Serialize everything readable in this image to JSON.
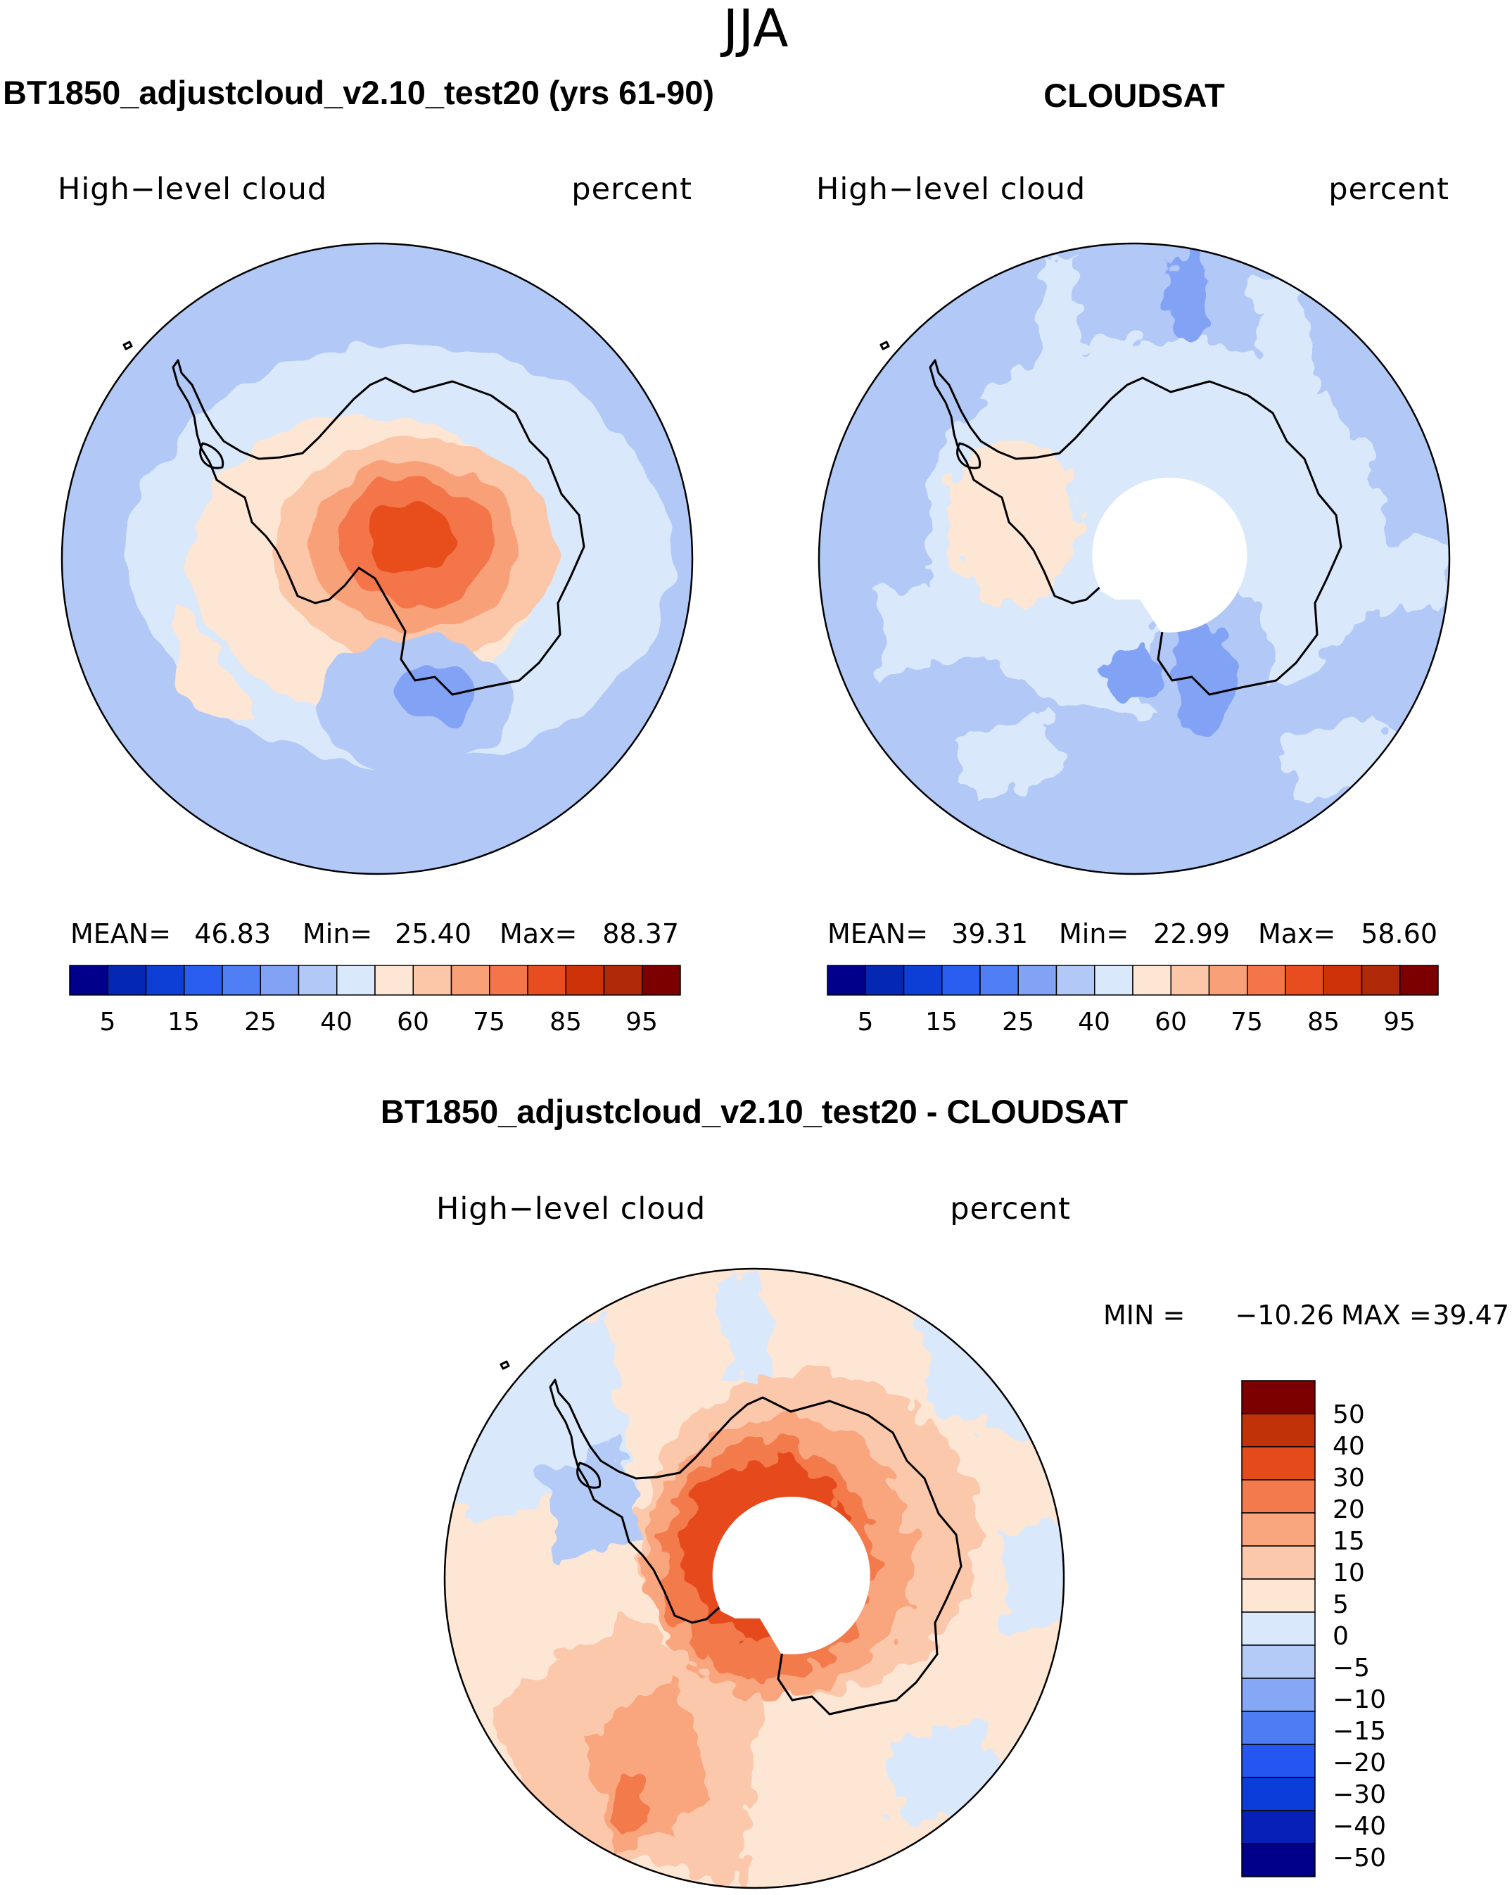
{
  "figure": {
    "season": "JJA",
    "colors": {
      "seq": [
        "#00008b",
        "#0528b4",
        "#0d3fd7",
        "#2a5ef0",
        "#4f7ef5",
        "#82a3f5",
        "#b2c9f7",
        "#dae8fb",
        "#fde6d4",
        "#fcc6a8",
        "#f8a077",
        "#f47549",
        "#e84d1f",
        "#cd3208",
        "#b02a0a",
        "#7d0000"
      ],
      "div": [
        "#00008b",
        "#0720b8",
        "#0b3ddb",
        "#2556f2",
        "#4e7cf2",
        "#86a7f5",
        "#b4cbf7",
        "#dae8fb",
        "#fde6d4",
        "#fcc8ab",
        "#f9a57d",
        "#f27a4c",
        "#e54a1a",
        "#c23208",
        "#7d0000"
      ]
    },
    "panels": [
      {
        "id": "model",
        "title": "BT1850_adjustcloud_v2.10_test20 (yrs 61-90)",
        "variable": "High−level cloud",
        "units": "percent",
        "stats": {
          "mean_label": "MEAN=",
          "mean": "46.83",
          "min_label": "Min=",
          "min": "25.40",
          "max_label": "Max=",
          "max": "88.37"
        },
        "colorbar_ticks": [
          "5",
          "15",
          "25",
          "40",
          "60",
          "75",
          "85",
          "95"
        ]
      },
      {
        "id": "obs",
        "title": "CLOUDSAT",
        "variable": "High−level cloud",
        "units": "percent",
        "stats": {
          "mean_label": "MEAN=",
          "mean": "39.31",
          "min_label": "Min=",
          "min": "22.99",
          "max_label": "Max=",
          "max": "58.60"
        },
        "colorbar_ticks": [
          "5",
          "15",
          "25",
          "40",
          "60",
          "75",
          "85",
          "95"
        ]
      },
      {
        "id": "diff",
        "title": "BT1850_adjustcloud_v2.10_test20 - CLOUDSAT",
        "variable": "High−level cloud",
        "units": "percent",
        "minmax": {
          "min_label": "MIN =",
          "min": "−10.26",
          "max_label": "MAX =",
          "max": "39.47"
        },
        "colorbar_ticks": [
          "50",
          "40",
          "30",
          "20",
          "15",
          "10",
          "5",
          "0",
          "−5",
          "−10",
          "−15",
          "−20",
          "−30",
          "−40",
          "−50"
        ]
      }
    ]
  }
}
